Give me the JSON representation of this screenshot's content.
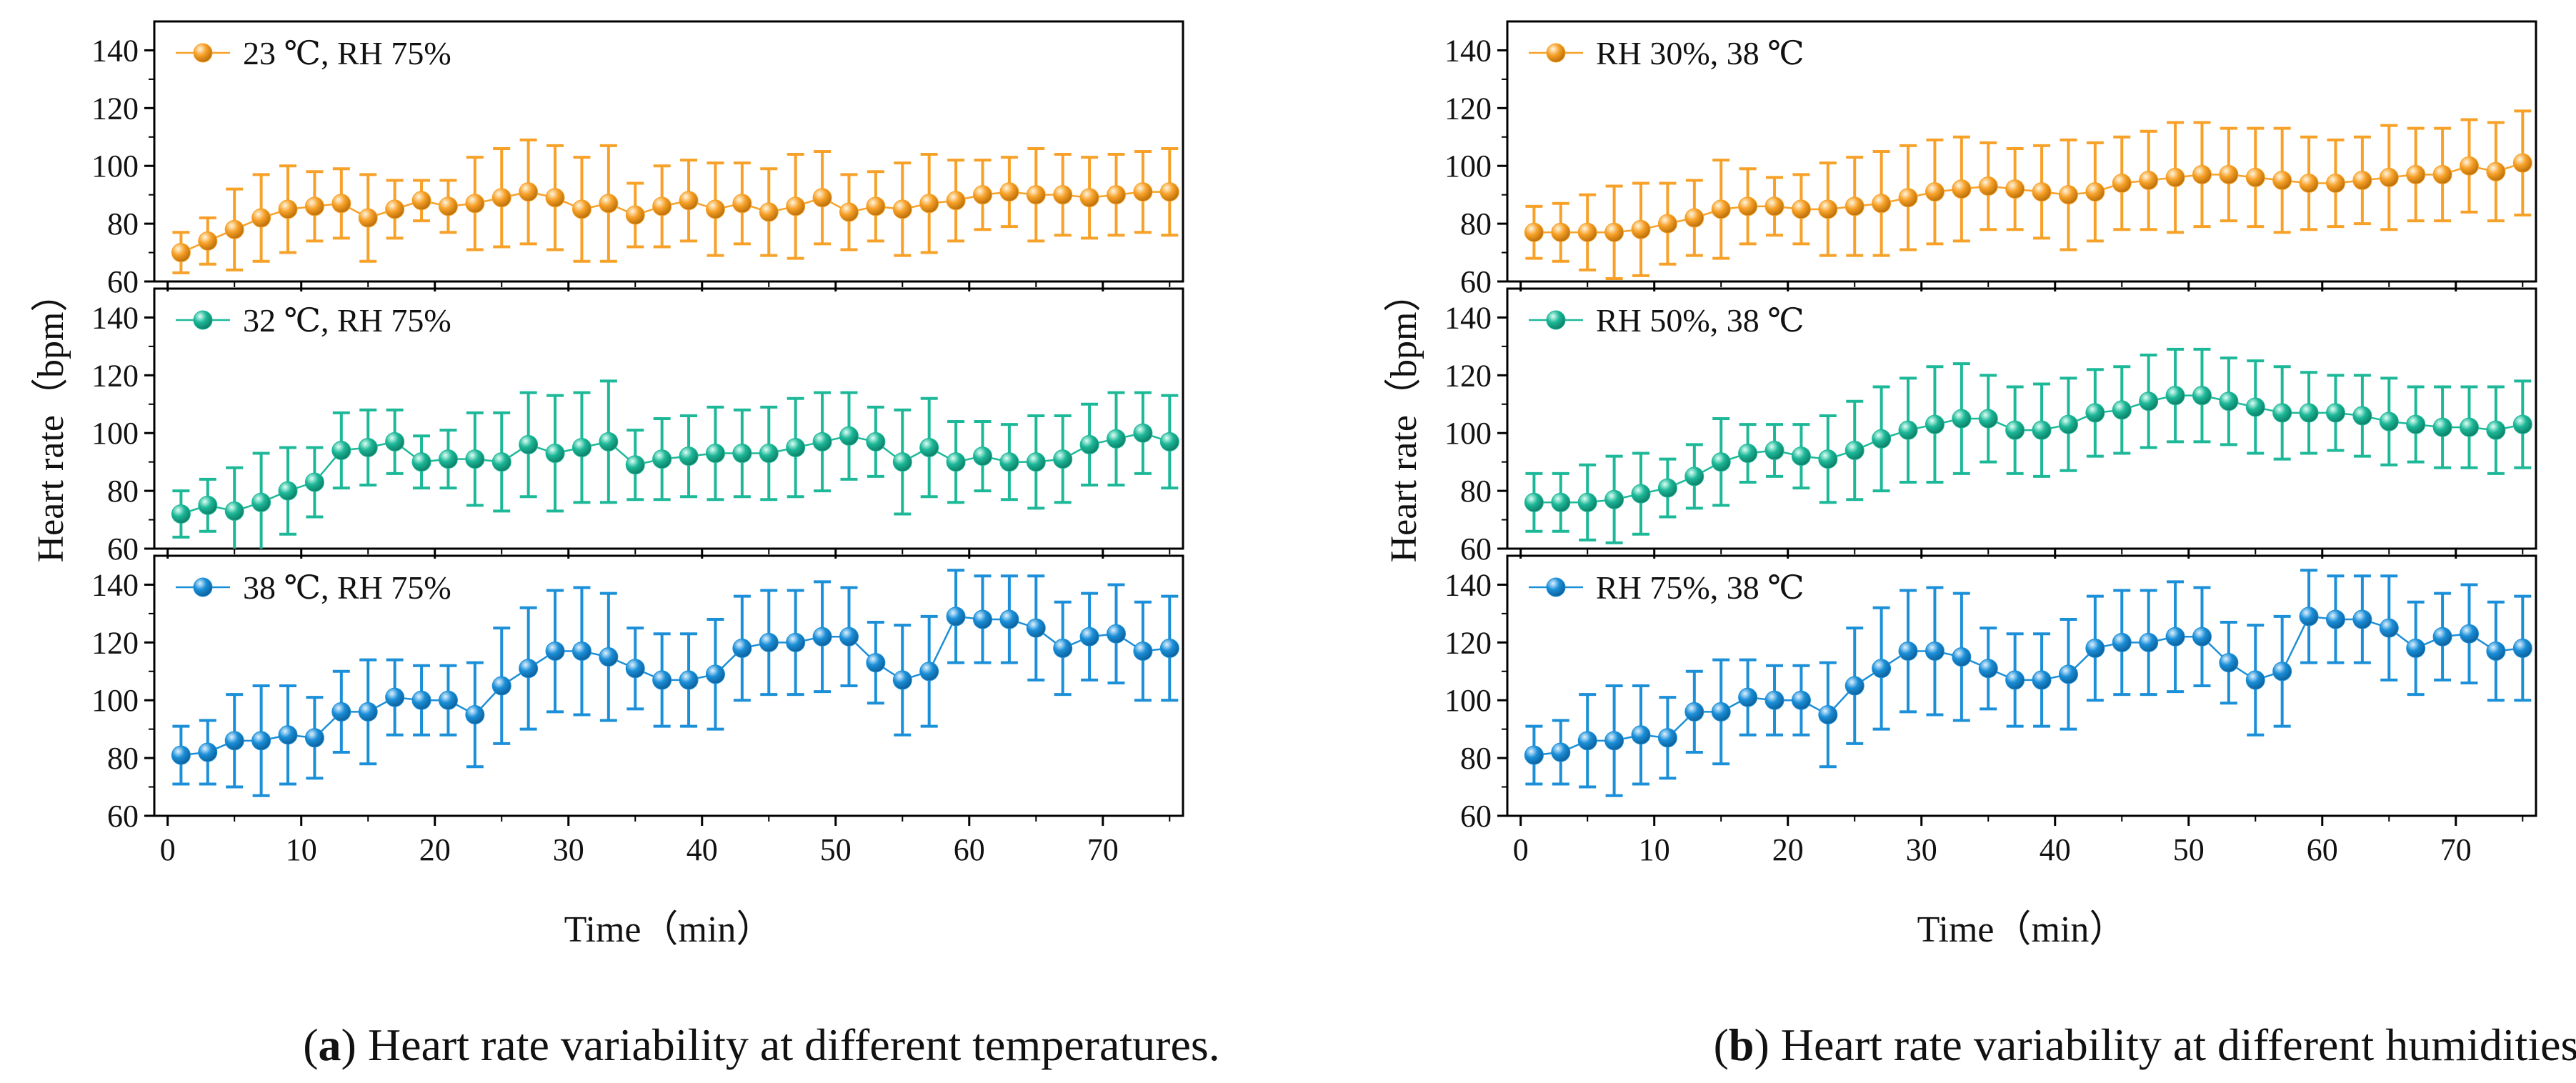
{
  "colors": {
    "orange": "#F7A128",
    "green": "#1DB898",
    "blue": "#1B8FD8",
    "axis": "#000000"
  },
  "chart_data": [
    {
      "id": "a",
      "type": "line",
      "caption": {
        "label": "a",
        "text": ") Heart rate variability at different temperatures."
      },
      "xlabel": "Time（min）",
      "ylabel": "Heart rate（bpm）",
      "xlim": [
        -1,
        76
      ],
      "x_ticks": [
        0,
        10,
        20,
        30,
        40,
        50,
        60,
        70
      ],
      "x": [
        1,
        3,
        5,
        7,
        9,
        11,
        13,
        15,
        17,
        19,
        21,
        23,
        25,
        27,
        29,
        31,
        33,
        35,
        37,
        39,
        41,
        43,
        45,
        47,
        49,
        51,
        53,
        55,
        57,
        59,
        61,
        63,
        65,
        67,
        69,
        71,
        73,
        75
      ],
      "panels": [
        {
          "name": "23 ℃, RH 75%",
          "color": "orange",
          "ylim": [
            60,
            150
          ],
          "y_ticks": [
            60,
            80,
            100,
            120,
            140
          ],
          "values": [
            70,
            74,
            78,
            82,
            85,
            86,
            87,
            82,
            85,
            88,
            86,
            87,
            89,
            91,
            89,
            85,
            87,
            83,
            86,
            88,
            85,
            87,
            84,
            86,
            89,
            84,
            86,
            85,
            87,
            88,
            90,
            91,
            90,
            90,
            89,
            90,
            91,
            91
          ],
          "errors": [
            7,
            8,
            14,
            15,
            15,
            12,
            12,
            15,
            10,
            7,
            9,
            16,
            17,
            18,
            18,
            18,
            20,
            11,
            14,
            14,
            16,
            14,
            15,
            18,
            16,
            13,
            12,
            16,
            17,
            14,
            12,
            12,
            16,
            14,
            14,
            14,
            14,
            15
          ]
        },
        {
          "name": "32 ℃, RH 75%",
          "color": "green",
          "ylim": [
            60,
            150
          ],
          "y_ticks": [
            60,
            80,
            100,
            120,
            140
          ],
          "values": [
            72,
            75,
            73,
            76,
            80,
            83,
            94,
            95,
            97,
            90,
            91,
            91,
            90,
            96,
            93,
            95,
            97,
            89,
            91,
            92,
            93,
            93,
            93,
            95,
            97,
            99,
            97,
            90,
            95,
            90,
            92,
            90,
            90,
            91,
            96,
            98,
            100,
            97
          ],
          "errors": [
            8,
            9,
            15,
            17,
            15,
            12,
            13,
            13,
            11,
            9,
            10,
            16,
            17,
            18,
            20,
            19,
            21,
            12,
            14,
            14,
            16,
            15,
            16,
            17,
            17,
            15,
            12,
            18,
            17,
            14,
            12,
            13,
            16,
            15,
            14,
            16,
            14,
            16
          ]
        },
        {
          "name": "38 ℃, RH 75%",
          "color": "blue",
          "ylim": [
            60,
            150
          ],
          "y_ticks": [
            60,
            80,
            100,
            120,
            140
          ],
          "values": [
            81,
            82,
            86,
            86,
            88,
            87,
            96,
            96,
            101,
            100,
            100,
            95,
            105,
            111,
            117,
            117,
            115,
            111,
            107,
            107,
            109,
            118,
            120,
            120,
            122,
            122,
            113,
            107,
            110,
            129,
            128,
            128,
            125,
            118,
            122,
            123,
            117,
            118
          ],
          "errors": [
            10,
            11,
            16,
            19,
            17,
            14,
            14,
            18,
            13,
            12,
            12,
            18,
            20,
            21,
            21,
            22,
            22,
            14,
            16,
            16,
            19,
            18,
            18,
            18,
            19,
            17,
            14,
            19,
            19,
            16,
            15,
            15,
            18,
            16,
            15,
            17,
            17,
            18
          ]
        }
      ]
    },
    {
      "id": "b",
      "type": "line",
      "caption": {
        "label": "b",
        "text": ") Heart rate variability at different humidities."
      },
      "xlabel": "Time（min）",
      "ylabel": "Heart rate（bpm）",
      "xlim": [
        -1,
        76
      ],
      "x_ticks": [
        0,
        10,
        20,
        30,
        40,
        50,
        60,
        70
      ],
      "x": [
        1,
        3,
        5,
        7,
        9,
        11,
        13,
        15,
        17,
        19,
        21,
        23,
        25,
        27,
        29,
        31,
        33,
        35,
        37,
        39,
        41,
        43,
        45,
        47,
        49,
        51,
        53,
        55,
        57,
        59,
        61,
        63,
        65,
        67,
        69,
        71,
        73,
        75
      ],
      "panels": [
        {
          "name": "RH 30%, 38 ℃",
          "color": "orange",
          "ylim": [
            60,
            150
          ],
          "y_ticks": [
            60,
            80,
            100,
            120,
            140
          ],
          "values": [
            77,
            77,
            77,
            77,
            78,
            80,
            82,
            85,
            86,
            86,
            85,
            85,
            86,
            87,
            89,
            91,
            92,
            93,
            92,
            91,
            90,
            91,
            94,
            95,
            96,
            97,
            97,
            96,
            95,
            94,
            94,
            95,
            96,
            97,
            97,
            100,
            98,
            101
          ],
          "errors": [
            9,
            10,
            13,
            16,
            16,
            14,
            13,
            17,
            13,
            10,
            12,
            16,
            17,
            18,
            18,
            18,
            18,
            15,
            14,
            16,
            19,
            17,
            16,
            17,
            19,
            18,
            16,
            17,
            18,
            16,
            15,
            15,
            18,
            16,
            16,
            16,
            17,
            18
          ]
        },
        {
          "name": "RH 50%, 38 ℃",
          "color": "green",
          "ylim": [
            60,
            150
          ],
          "y_ticks": [
            60,
            80,
            100,
            120,
            140
          ],
          "values": [
            76,
            76,
            76,
            77,
            79,
            81,
            85,
            90,
            93,
            94,
            92,
            91,
            94,
            98,
            101,
            103,
            105,
            105,
            101,
            101,
            103,
            107,
            108,
            111,
            113,
            113,
            111,
            109,
            107,
            107,
            107,
            106,
            104,
            103,
            102,
            102,
            101,
            103
          ],
          "errors": [
            10,
            10,
            13,
            15,
            14,
            10,
            11,
            15,
            10,
            9,
            11,
            15,
            17,
            18,
            18,
            20,
            19,
            15,
            15,
            16,
            16,
            15,
            15,
            16,
            16,
            16,
            15,
            16,
            16,
            14,
            13,
            14,
            15,
            13,
            14,
            14,
            15,
            15
          ]
        },
        {
          "name": "RH 75%, 38 ℃",
          "color": "blue",
          "ylim": [
            60,
            150
          ],
          "y_ticks": [
            60,
            80,
            100,
            120,
            140
          ],
          "values": [
            81,
            82,
            86,
            86,
            88,
            87,
            96,
            96,
            101,
            100,
            100,
            95,
            105,
            111,
            117,
            117,
            115,
            111,
            107,
            107,
            109,
            118,
            120,
            120,
            122,
            122,
            113,
            107,
            110,
            129,
            128,
            128,
            125,
            118,
            122,
            123,
            117,
            118
          ],
          "errors": [
            10,
            11,
            16,
            19,
            17,
            14,
            14,
            18,
            13,
            12,
            12,
            18,
            20,
            21,
            21,
            22,
            22,
            14,
            16,
            16,
            19,
            18,
            18,
            18,
            19,
            17,
            14,
            19,
            19,
            16,
            15,
            15,
            18,
            16,
            15,
            17,
            17,
            18
          ]
        }
      ]
    }
  ]
}
